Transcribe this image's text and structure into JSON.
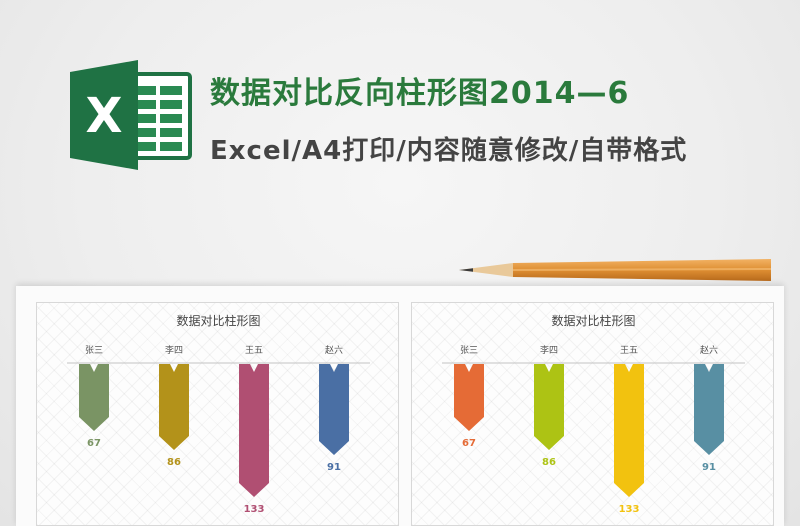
{
  "header": {
    "title": "数据对比反向柱形图2014—6",
    "subtitle": "Excel/A4打印/内容随意修改/自带格式",
    "logo_letter": "X",
    "logo_icon": "excel-logo-icon",
    "brand_color": "#1f7244"
  },
  "decor": {
    "pencil_icon": "pencil-icon"
  },
  "chart_data": [
    {
      "type": "bar",
      "orientation": "reverse-down",
      "title": "数据对比柱形图",
      "categories": [
        "张三",
        "李四",
        "王五",
        "赵六"
      ],
      "values": [
        67,
        86,
        133,
        91
      ],
      "ylim": [
        0,
        140
      ],
      "grid": false,
      "colors": [
        "#7a9464",
        "#b3921a",
        "#b04f72",
        "#4a6fa4"
      ]
    },
    {
      "type": "bar",
      "orientation": "reverse-down",
      "title": "数据对比柱形图",
      "categories": [
        "张三",
        "李四",
        "王五",
        "赵六"
      ],
      "values": [
        67,
        86,
        133,
        91
      ],
      "ylim": [
        0,
        140
      ],
      "grid": false,
      "colors": [
        "#e56b36",
        "#adc314",
        "#f2c20f",
        "#588fa3"
      ]
    }
  ]
}
